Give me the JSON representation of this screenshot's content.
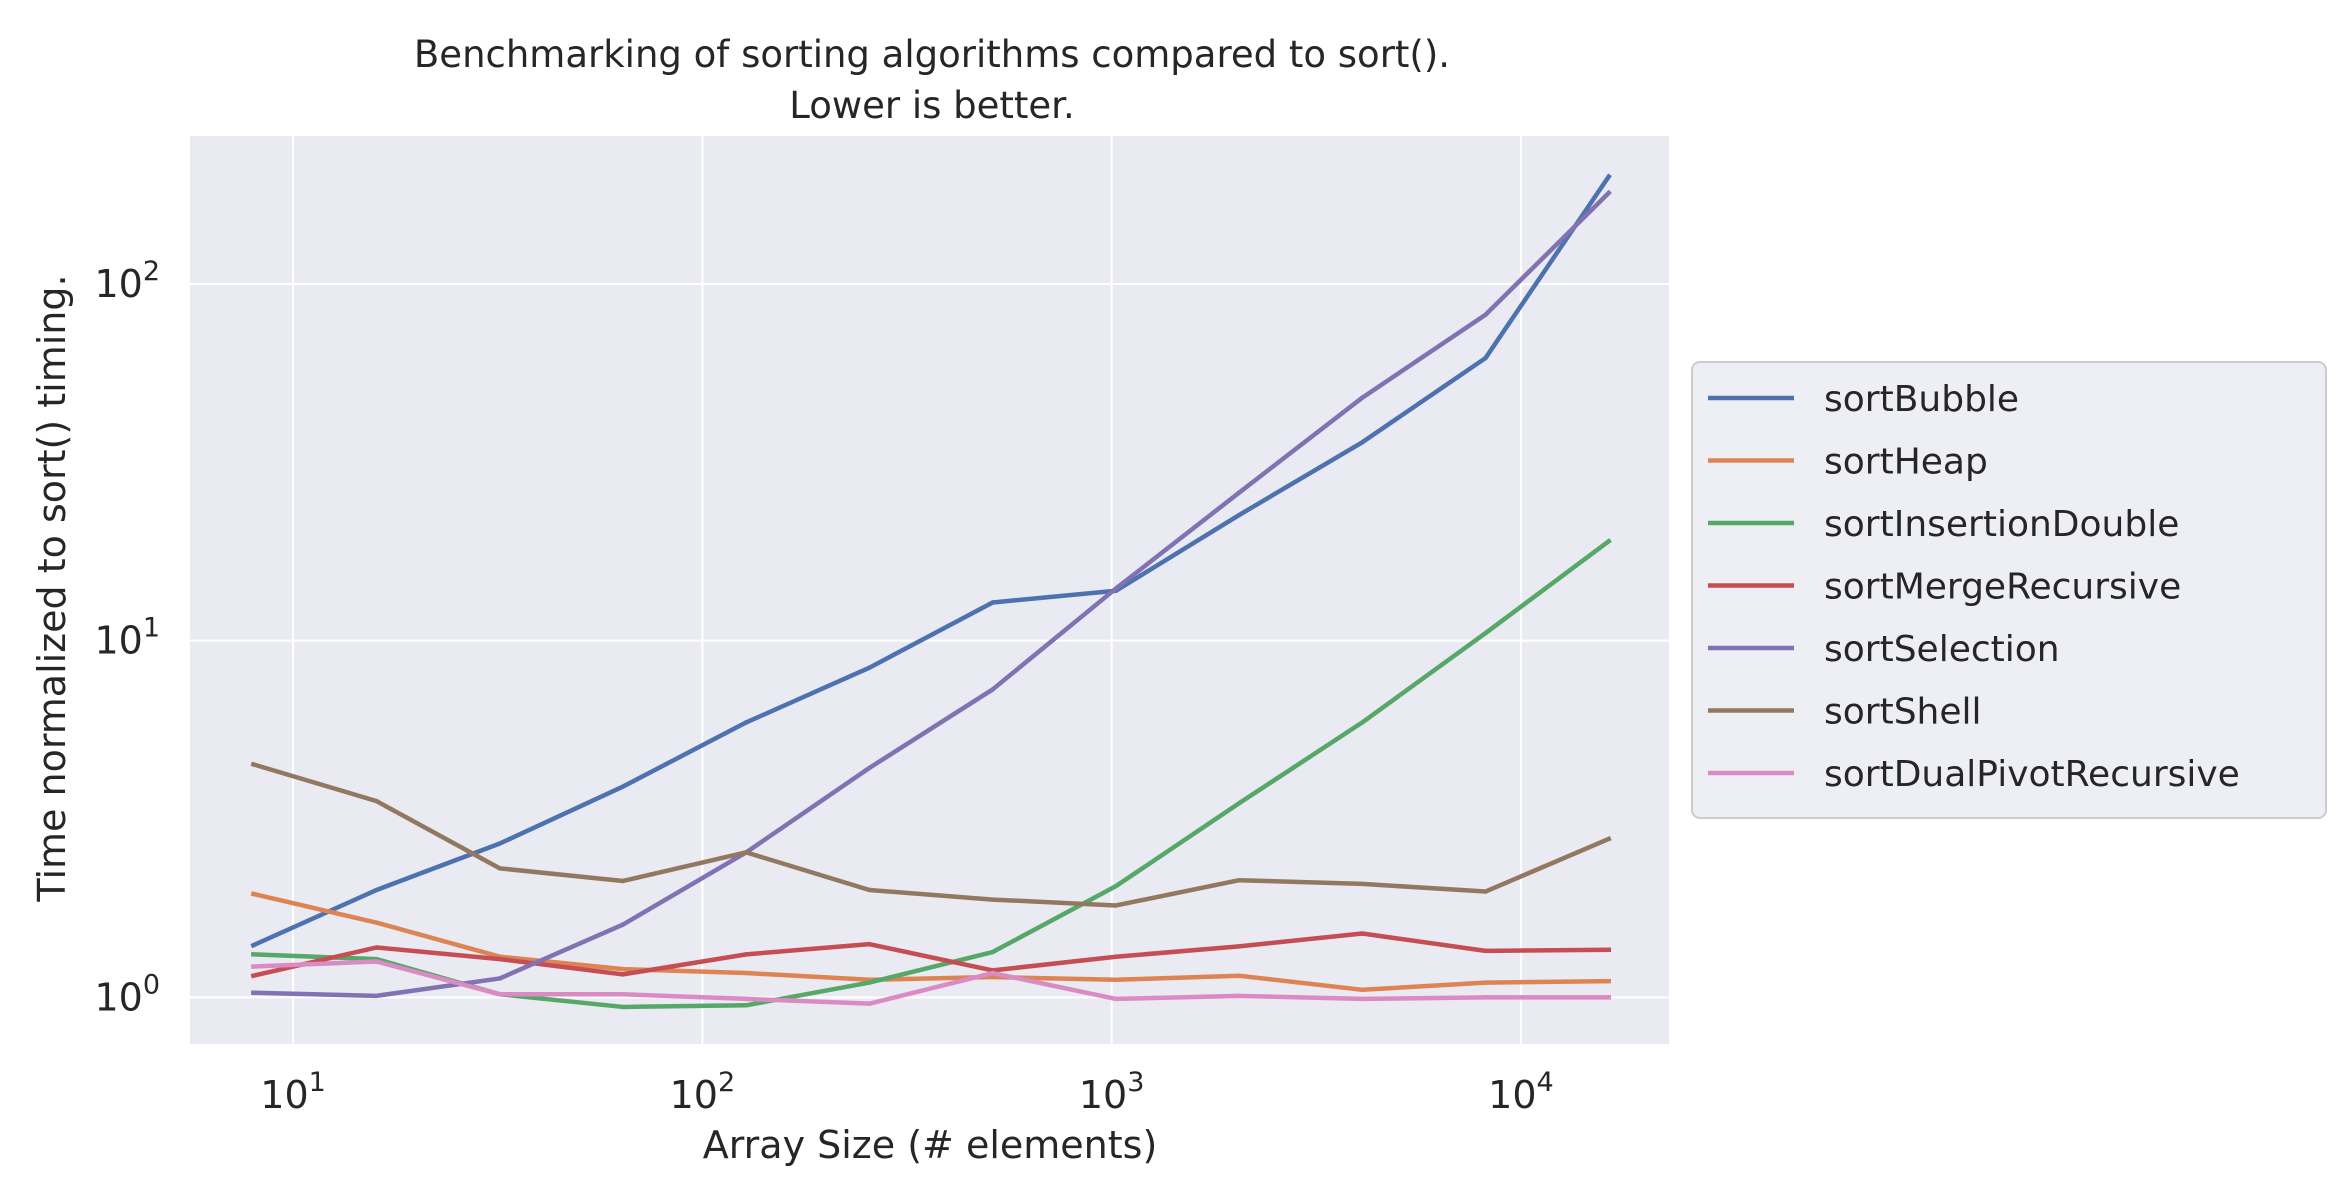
{
  "chart_data": {
    "type": "line",
    "title": "Benchmarking of sorting algorithms compared to sort().\nLower is better.",
    "xlabel": "Array Size (# elements)",
    "ylabel": "Time normalized to sort() timing.",
    "x_scale": "log",
    "y_scale": "log",
    "xlim": [
      5.6,
      23000
    ],
    "ylim": [
      0.74,
      260
    ],
    "x_ticks": [
      {
        "value": 10,
        "label_base": "10",
        "label_exp": "1"
      },
      {
        "value": 100,
        "label_base": "10",
        "label_exp": "2"
      },
      {
        "value": 1000,
        "label_base": "10",
        "label_exp": "3"
      },
      {
        "value": 10000,
        "label_base": "10",
        "label_exp": "4"
      }
    ],
    "y_ticks": [
      {
        "value": 1,
        "label_base": "10",
        "label_exp": "0"
      },
      {
        "value": 10,
        "label_base": "10",
        "label_exp": "1"
      },
      {
        "value": 100,
        "label_base": "10",
        "label_exp": "2"
      }
    ],
    "grid": true,
    "legend_position": "outside-right",
    "background": "#eaeaf2",
    "grid_color": "#ffffff",
    "x": [
      8,
      16,
      32,
      64,
      128,
      256,
      512,
      1024,
      2048,
      4096,
      8192,
      16384
    ],
    "series": [
      {
        "name": "sortBubble",
        "color": "#4c72b0",
        "values": [
          1.4,
          2.0,
          2.7,
          3.9,
          5.9,
          8.4,
          12.8,
          13.8,
          22.5,
          36.0,
          62.0,
          200.0
        ]
      },
      {
        "name": "sortHeap",
        "color": "#dd8452",
        "values": [
          1.95,
          1.62,
          1.3,
          1.2,
          1.17,
          1.12,
          1.14,
          1.12,
          1.15,
          1.05,
          1.1,
          1.11
        ]
      },
      {
        "name": "sortInsertionDouble",
        "color": "#55a868",
        "values": [
          1.32,
          1.28,
          1.02,
          0.94,
          0.95,
          1.1,
          1.34,
          2.05,
          3.5,
          5.9,
          10.5,
          19.0
        ]
      },
      {
        "name": "sortMergeRecursive",
        "color": "#c44e52",
        "values": [
          1.15,
          1.38,
          1.28,
          1.16,
          1.32,
          1.41,
          1.19,
          1.3,
          1.39,
          1.51,
          1.35,
          1.36
        ]
      },
      {
        "name": "sortSelection",
        "color": "#8172b3",
        "values": [
          1.03,
          1.01,
          1.13,
          1.6,
          2.55,
          4.4,
          7.3,
          14.0,
          26.0,
          48.0,
          82.0,
          180.0
        ]
      },
      {
        "name": "sortShell",
        "color": "#937860",
        "values": [
          4.5,
          3.55,
          2.3,
          2.12,
          2.55,
          2.0,
          1.88,
          1.81,
          2.13,
          2.08,
          1.98,
          2.78
        ]
      },
      {
        "name": "sortDualPivotRecursive",
        "color": "#da8bc3",
        "values": [
          1.22,
          1.26,
          1.02,
          1.02,
          0.99,
          0.96,
          1.17,
          0.99,
          1.01,
          0.99,
          1.0,
          1.0
        ]
      }
    ]
  }
}
